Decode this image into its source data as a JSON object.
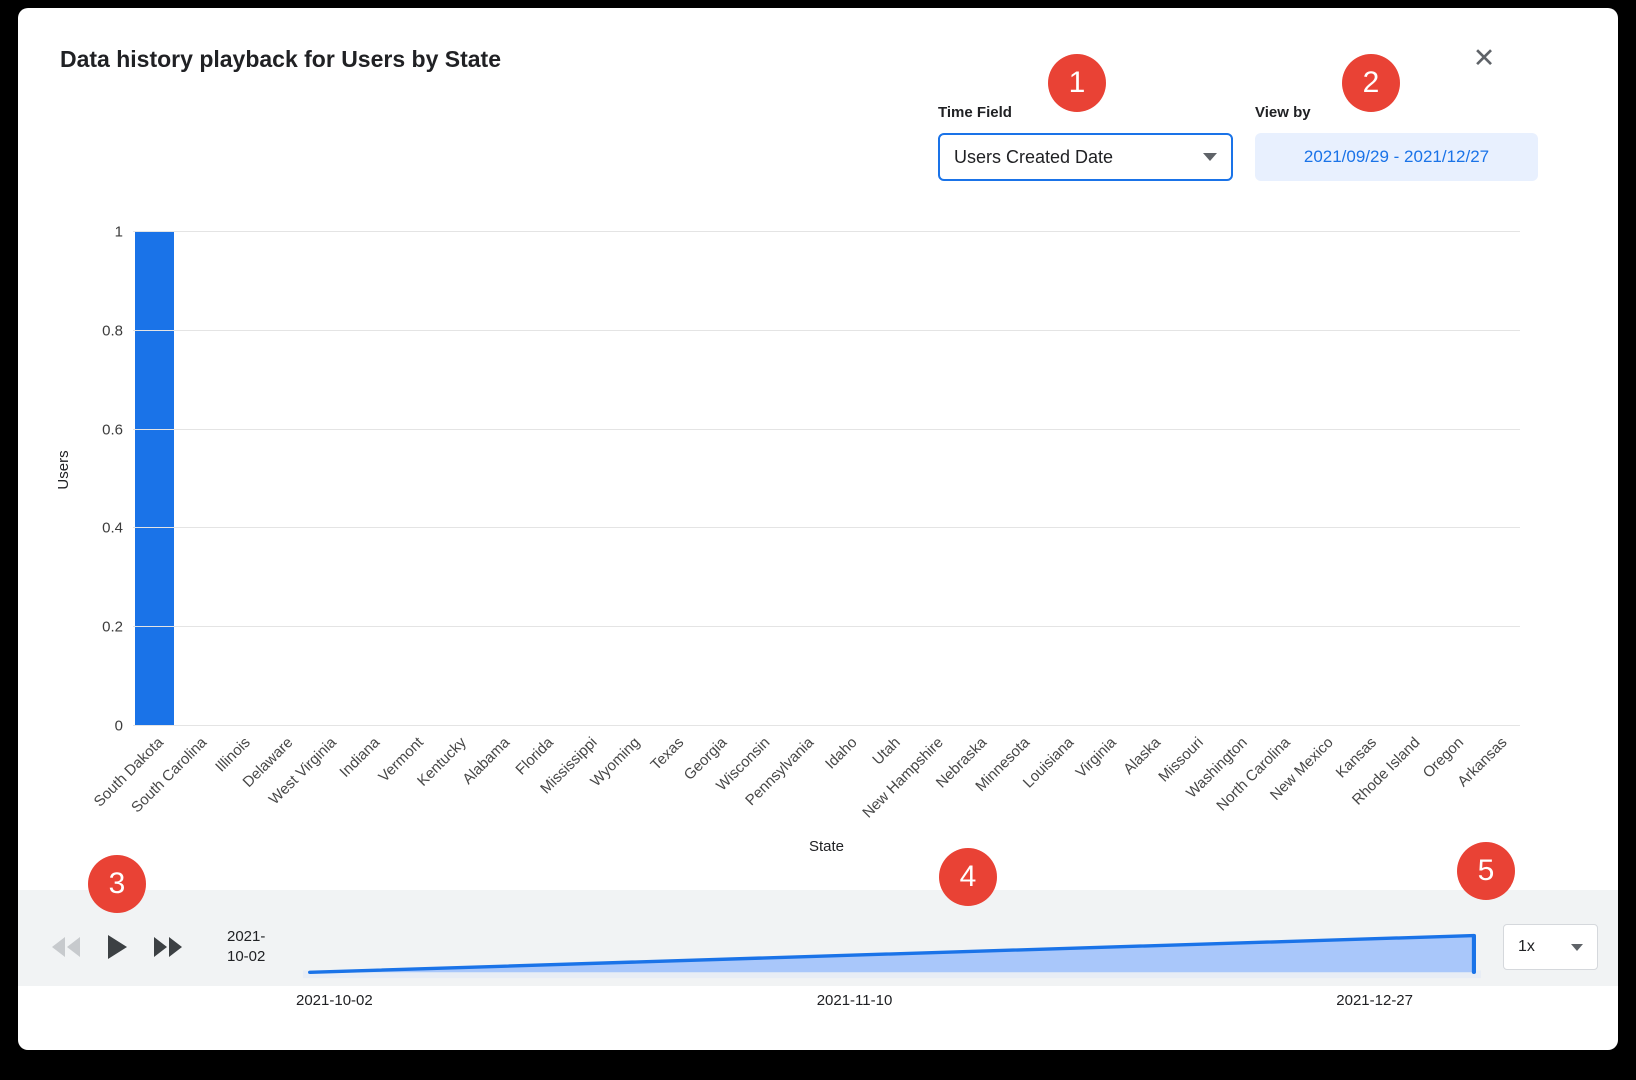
{
  "modal": {
    "title": "Data history playback for Users by State"
  },
  "icons": {
    "close": "✕"
  },
  "controls": {
    "time_field_label": "Time Field",
    "time_field_value": "Users Created Date",
    "view_by_label": "View by",
    "view_by_value": "2021/09/29 - 2021/12/27"
  },
  "chart_data": {
    "type": "bar",
    "title": "",
    "xlabel": "State",
    "ylabel": "Users",
    "ylim": [
      0,
      1
    ],
    "ytick_labels": [
      "0",
      "0.2",
      "0.4",
      "0.6",
      "0.8",
      "1"
    ],
    "grid": true,
    "bar_color": "#1a73e8",
    "categories": [
      "South Dakota",
      "South Carolina",
      "Illinois",
      "Delaware",
      "West Virginia",
      "Indiana",
      "Vermont",
      "Kentucky",
      "Alabama",
      "Florida",
      "Mississippi",
      "Wyoming",
      "Texas",
      "Georgia",
      "Wisconsin",
      "Pennsylvania",
      "Idaho",
      "Utah",
      "New Hampshire",
      "Nebraska",
      "Minnesota",
      "Louisiana",
      "Virginia",
      "Alaska",
      "Missouri",
      "Washington",
      "North Carolina",
      "New Mexico",
      "Kansas",
      "Rhode Island",
      "Oregon",
      "Arkansas"
    ],
    "values": [
      1,
      0,
      0,
      0,
      0,
      0,
      0,
      0,
      0,
      0,
      0,
      0,
      0,
      0,
      0,
      0,
      0,
      0,
      0,
      0,
      0,
      0,
      0,
      0,
      0,
      0,
      0,
      0,
      0,
      0,
      0,
      0
    ]
  },
  "playback": {
    "current_date": "2021-10-02",
    "timeline_dates": [
      "2021-10-02",
      "2021-11-10",
      "2021-12-27"
    ],
    "speed": "1x",
    "timeline_colors": {
      "area_fill": "#a9c7fa",
      "line": "#1a73e8",
      "track": "#e8edf5"
    }
  },
  "annotations": {
    "badges": [
      "1",
      "2",
      "3",
      "4",
      "5"
    ]
  }
}
